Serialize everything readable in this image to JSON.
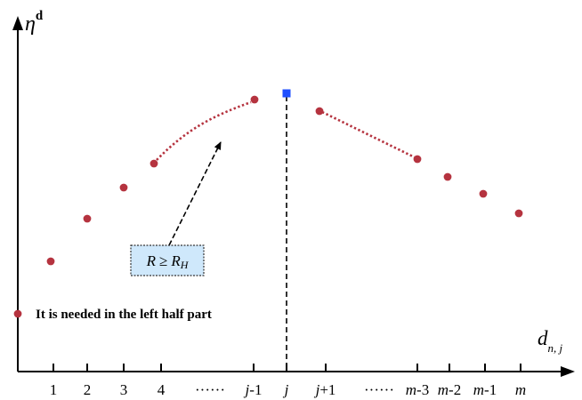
{
  "axes": {
    "y_symbol": "η",
    "y_superscript": "d",
    "x_symbol": "d",
    "x_subscript": "n, j"
  },
  "ticks": [
    {
      "key": "t1",
      "parts": [
        {
          "t": "1",
          "i": false
        }
      ]
    },
    {
      "key": "t2",
      "parts": [
        {
          "t": "2",
          "i": false
        }
      ]
    },
    {
      "key": "t3",
      "parts": [
        {
          "t": "3",
          "i": false
        }
      ]
    },
    {
      "key": "t4",
      "parts": [
        {
          "t": "4",
          "i": false
        }
      ]
    },
    {
      "key": "dots-left",
      "parts": [
        {
          "t": "······",
          "i": false
        }
      ]
    },
    {
      "key": "t-j-1",
      "parts": [
        {
          "t": "j",
          "i": true
        },
        {
          "t": "-1",
          "i": false
        }
      ]
    },
    {
      "key": "t-j",
      "parts": [
        {
          "t": "j",
          "i": true
        }
      ]
    },
    {
      "key": "t-j+1",
      "parts": [
        {
          "t": "j",
          "i": true
        },
        {
          "t": "+1",
          "i": false
        }
      ]
    },
    {
      "key": "dots-right",
      "parts": [
        {
          "t": "······",
          "i": false
        }
      ]
    },
    {
      "key": "t-m-3",
      "parts": [
        {
          "t": "m",
          "i": true
        },
        {
          "t": "-3",
          "i": false
        }
      ]
    },
    {
      "key": "t-m-2",
      "parts": [
        {
          "t": "m",
          "i": true
        },
        {
          "t": "-2",
          "i": false
        }
      ]
    },
    {
      "key": "t-m-1",
      "parts": [
        {
          "t": "m",
          "i": true
        },
        {
          "t": "-1",
          "i": false
        }
      ]
    },
    {
      "key": "t-m",
      "parts": [
        {
          "t": "m",
          "i": true
        }
      ]
    }
  ],
  "annotation_text": "It is needed in the left half part",
  "condition_box": {
    "lhs": "R",
    "op": "≥",
    "rhs": "R",
    "rhs_subscript": "H"
  },
  "colors": {
    "point": "#b5333f",
    "peak": "#1f4fff",
    "box_fill": "#cfe8fb",
    "axis": "#000000"
  }
}
